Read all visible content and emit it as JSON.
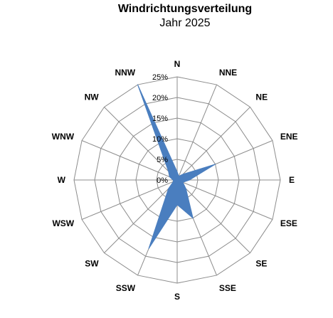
{
  "chart_data": {
    "type": "radar",
    "title": "Windrichtungsverteilung",
    "subtitle": "Jahr 2025",
    "categories": [
      "N",
      "NNE",
      "NE",
      "ENE",
      "E",
      "ESE",
      "SE",
      "SSE",
      "S",
      "SSW",
      "SW",
      "WSW",
      "W",
      "WNW",
      "NW",
      "NNW"
    ],
    "series": [
      {
        "name": "",
        "color": "#4a7ebf",
        "values": [
          2.0,
          1.0,
          2.0,
          10.0,
          3.0,
          1.5,
          3.0,
          10.0,
          6.0,
          18.0,
          3.0,
          1.0,
          1.0,
          2.0,
          3.0,
          25.0
        ]
      }
    ],
    "rlim": [
      0,
      25
    ],
    "ticks": [
      0,
      5,
      10,
      15,
      20,
      25
    ],
    "tick_labels": [
      "0%",
      "5%",
      "10%",
      "15%",
      "20%",
      "25%"
    ],
    "grid": true,
    "legend": "none"
  }
}
